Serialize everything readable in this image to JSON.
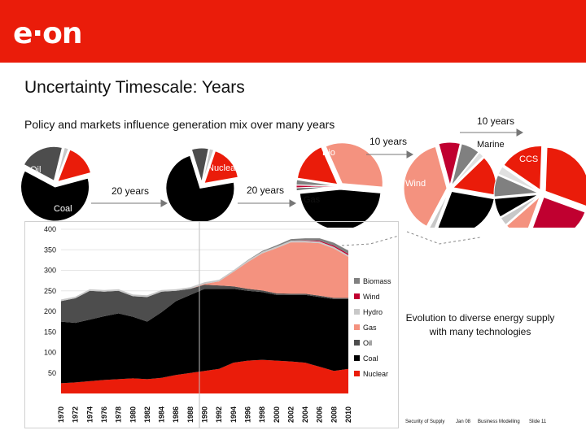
{
  "slide": {
    "logo": "e·on",
    "title": "Uncertainty Timescale: Years",
    "subtitle": "Policy and markets influence generation mix over many years",
    "caption_line1": "Evolution to diverse energy supply",
    "caption_line2": "with many technologies",
    "footer": [
      "Security of Supply",
      "Jan 08",
      "Business Modelling",
      "Slide 11"
    ],
    "brand_color": "#ea1c0a"
  },
  "timeline": {
    "arrow1_label": "20 years",
    "arrow2_label": "20 years",
    "arrow3_label": "10 years",
    "arrow4_label": "10 years"
  },
  "pie_labels": {
    "oil": "Oil",
    "coal": "Coal",
    "nuclear": "Nuclear",
    "bio": "Bio",
    "gas": "Gas",
    "wind": "Wind",
    "marine": "Marine",
    "ccs": "CCS"
  },
  "chart_data": {
    "type": "area",
    "x": [
      1970,
      1972,
      1974,
      1976,
      1978,
      1980,
      1982,
      1984,
      1986,
      1988,
      1990,
      1992,
      1994,
      1996,
      1998,
      2000,
      2002,
      2004,
      2006,
      2008,
      2010
    ],
    "xtick_labels": [
      "1970",
      "1972",
      "1974",
      "1976",
      "1978",
      "1980",
      "1982",
      "1984",
      "1986",
      "1988",
      "1990",
      "1992",
      "1994",
      "1996",
      "1998",
      "2000",
      "2002",
      "2004",
      "2006",
      "2008",
      "2010"
    ],
    "ylim": [
      0,
      400
    ],
    "yticks": [
      50,
      100,
      150,
      200,
      250,
      300,
      350,
      400
    ],
    "legend_position": "right",
    "series": [
      {
        "name": "Nuclear",
        "color": "#ea1c0a",
        "values": [
          25,
          27,
          30,
          33,
          35,
          37,
          35,
          38,
          45,
          50,
          55,
          60,
          75,
          80,
          82,
          80,
          78,
          75,
          65,
          55,
          60
        ]
      },
      {
        "name": "Coal",
        "color": "#000000",
        "values": [
          150,
          145,
          150,
          155,
          160,
          150,
          140,
          160,
          180,
          190,
          200,
          195,
          180,
          170,
          165,
          160,
          162,
          165,
          170,
          175,
          170
        ]
      },
      {
        "name": "Oil",
        "color": "#4d4d4d",
        "values": [
          50,
          60,
          70,
          60,
          55,
          50,
          60,
          50,
          25,
          15,
          10,
          8,
          6,
          5,
          4,
          4,
          3,
          3,
          3,
          3,
          3
        ]
      },
      {
        "name": "Gas",
        "color": "#f4927f",
        "values": [
          0,
          0,
          0,
          0,
          0,
          0,
          0,
          0,
          0,
          0,
          2,
          10,
          35,
          65,
          90,
          110,
          125,
          125,
          128,
          120,
          100
        ]
      },
      {
        "name": "Hydro",
        "color": "#c8c8c8",
        "values": [
          4,
          4,
          4,
          4,
          4,
          4,
          4,
          4,
          4,
          4,
          4,
          4,
          4,
          4,
          4,
          4,
          4,
          4,
          4,
          4,
          4
        ]
      },
      {
        "name": "Wind",
        "color": "#c00030",
        "values": [
          0,
          0,
          0,
          0,
          0,
          0,
          0,
          0,
          0,
          0,
          0,
          0,
          0,
          0,
          0,
          0,
          0,
          1,
          2,
          3,
          3
        ]
      },
      {
        "name": "Biomass",
        "color": "#808080",
        "values": [
          0,
          0,
          0,
          0,
          0,
          0,
          0,
          0,
          0,
          0,
          0,
          0,
          0,
          1,
          2,
          3,
          4,
          5,
          6,
          7,
          8
        ]
      }
    ],
    "legend_order": [
      "Biomass",
      "Wind",
      "Hydro",
      "Gas",
      "Oil",
      "Coal",
      "Nuclear"
    ]
  },
  "pies": [
    {
      "name": "pie-1970",
      "slices": [
        {
          "label": "Coal",
          "value": 62,
          "color": "#000000"
        },
        {
          "label": "Oil",
          "value": 21,
          "color": "#4d4d4d"
        },
        {
          "label": "Hydro",
          "value": 2,
          "color": "#c8c8c8"
        },
        {
          "label": "Nuclear",
          "value": 15,
          "color": "#ea1c0a"
        }
      ]
    },
    {
      "name": "pie-1990",
      "slices": [
        {
          "label": "Coal",
          "value": 73,
          "color": "#000000"
        },
        {
          "label": "Oil",
          "value": 8,
          "color": "#4d4d4d"
        },
        {
          "label": "Hydro",
          "value": 2,
          "color": "#c8c8c8"
        },
        {
          "label": "Nuclear",
          "value": 17,
          "color": "#ea1c0a"
        }
      ]
    },
    {
      "name": "pie-2010",
      "slices": [
        {
          "label": "Coal",
          "value": 47,
          "color": "#000000"
        },
        {
          "label": "Oil",
          "value": 1,
          "color": "#4d4d4d"
        },
        {
          "label": "Wind",
          "value": 1,
          "color": "#c00030"
        },
        {
          "label": "Biomass",
          "value": 2,
          "color": "#808080"
        },
        {
          "label": "Nuclear",
          "value": 16,
          "color": "#ea1c0a"
        },
        {
          "label": "Gas",
          "value": 33,
          "color": "#f4927f"
        }
      ]
    },
    {
      "name": "pie-2020",
      "slices": [
        {
          "label": "Coal",
          "value": 28,
          "color": "#000000"
        },
        {
          "label": "Hydro",
          "value": 2,
          "color": "#c8c8c8"
        },
        {
          "label": "Gas",
          "value": 38,
          "color": "#f4927f"
        },
        {
          "label": "Wind",
          "value": 8,
          "color": "#c00030"
        },
        {
          "label": "Biomass",
          "value": 7,
          "color": "#808080"
        },
        {
          "label": "Marine",
          "value": 2,
          "color": "#e0e0e0"
        },
        {
          "label": "Nuclear",
          "value": 15,
          "color": "#ea1c0a"
        }
      ]
    },
    {
      "name": "pie-2030",
      "slices": [
        {
          "label": "Wind",
          "value": 25,
          "color": "#c00030"
        },
        {
          "label": "Gas",
          "value": 8,
          "color": "#f4927f"
        },
        {
          "label": "Hydro",
          "value": 3,
          "color": "#c8c8c8"
        },
        {
          "label": "Coal",
          "value": 7,
          "color": "#000000"
        },
        {
          "label": "Biomass",
          "value": 8,
          "color": "#808080"
        },
        {
          "label": "Marine",
          "value": 3,
          "color": "#e0e0e0"
        },
        {
          "label": "Nuclear",
          "value": 16,
          "color": "#ea1c0a"
        },
        {
          "label": "CCS",
          "value": 30,
          "color": "#ea1c0a"
        }
      ]
    }
  ]
}
